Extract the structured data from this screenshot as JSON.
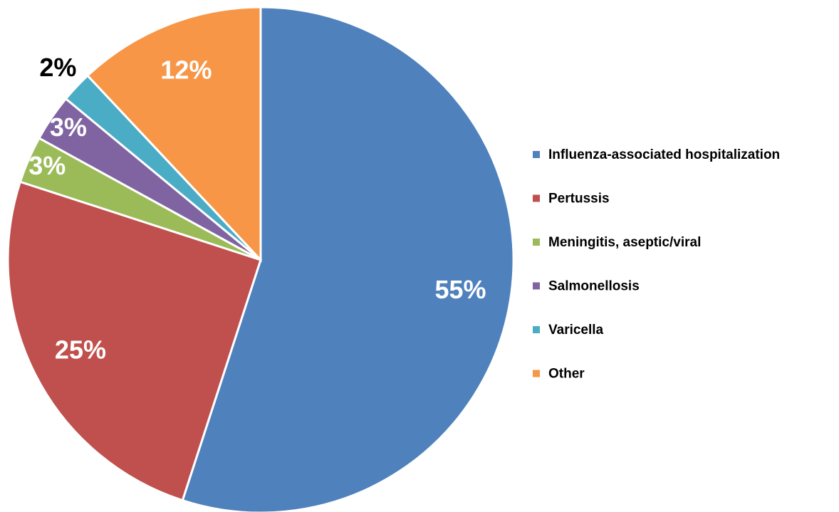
{
  "chart_data": {
    "type": "pie",
    "categories": [
      "Influenza-associated hospitalization",
      "Pertussis",
      "Meningitis, aseptic/viral",
      "Salmonellosis",
      "Varicella",
      "Other"
    ],
    "values": [
      55,
      25,
      3,
      3,
      2,
      12
    ],
    "value_labels": [
      "55%",
      "25%",
      "3%",
      "3%",
      "2%",
      "12%"
    ],
    "colors": [
      "#4f81bd",
      "#c0504d",
      "#9bbb59",
      "#8064a2",
      "#4bacc6",
      "#f79646"
    ],
    "legend": "right"
  }
}
